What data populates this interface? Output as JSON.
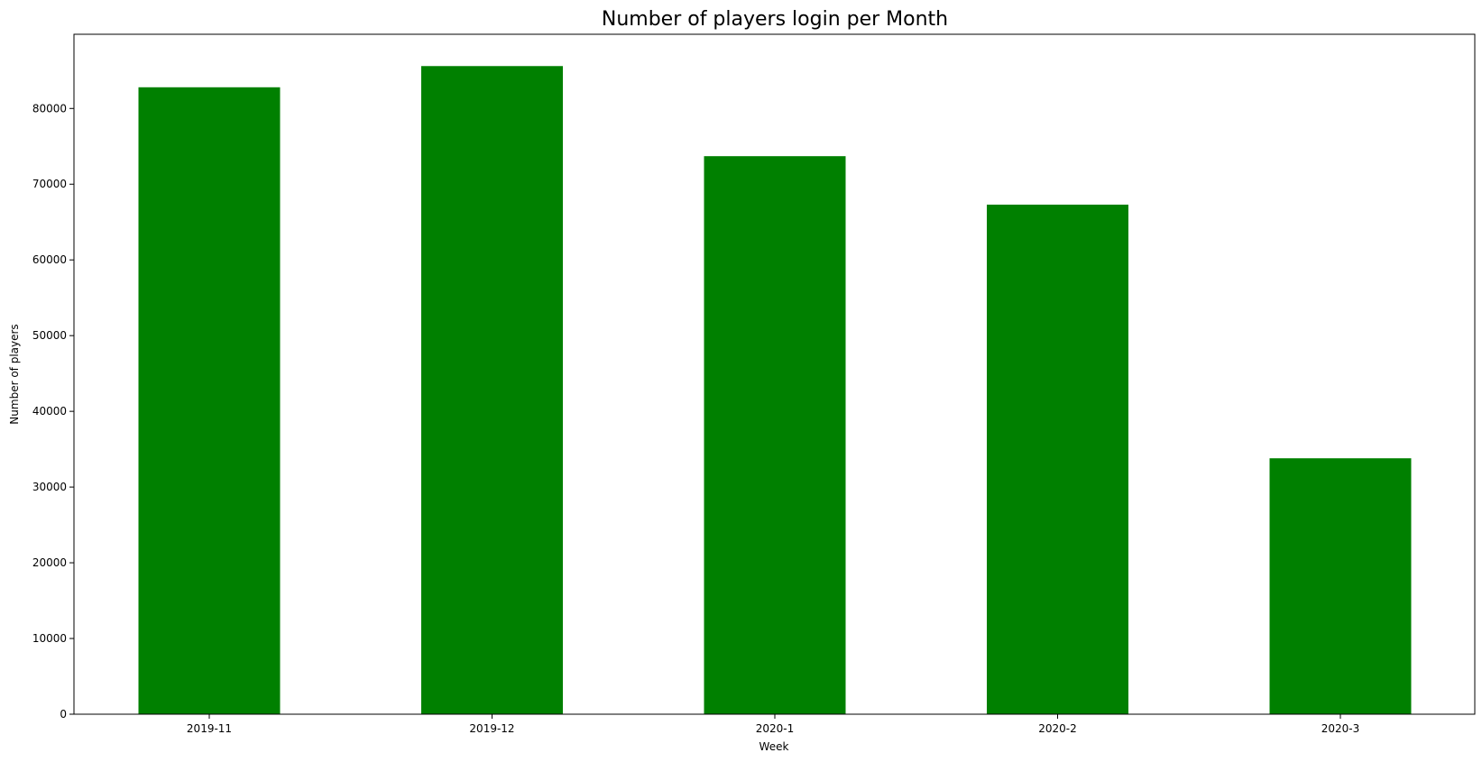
{
  "chart_data": {
    "type": "bar",
    "title": "Number of players login per Month",
    "xlabel": "Week",
    "ylabel": "Number of players",
    "categories": [
      "2019-11",
      "2019-12",
      "2020-1",
      "2020-2",
      "2020-3"
    ],
    "values": [
      82800,
      85600,
      73700,
      67300,
      33800
    ],
    "ylim": [
      0,
      89800
    ],
    "yticks": [
      "0",
      "10000",
      "20000",
      "30000",
      "40000",
      "50000",
      "60000",
      "70000",
      "80000"
    ],
    "bar_color": "#008000",
    "grid": false,
    "legend": "none"
  }
}
